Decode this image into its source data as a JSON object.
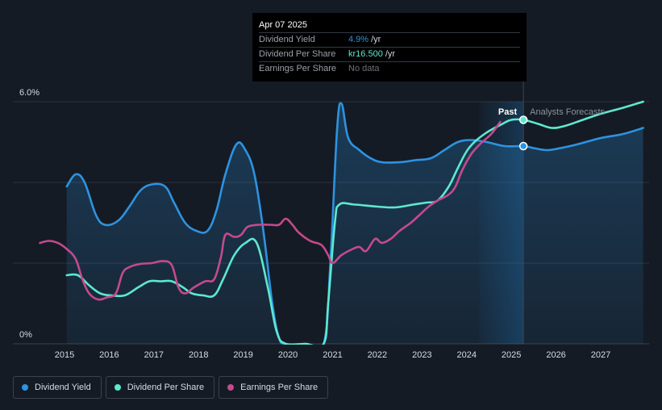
{
  "chart_data": {
    "type": "line",
    "y_axis": {
      "ticks": [
        {
          "value": 6.0,
          "label": "6.0%"
        },
        {
          "value": 0,
          "label": "0%"
        }
      ],
      "ylim": [
        0,
        6.0
      ],
      "gridlines": [
        2.0,
        4.0,
        6.0
      ]
    },
    "x_axis": {
      "ticks": [
        "2015",
        "2016",
        "2017",
        "2018",
        "2019",
        "2020",
        "2021",
        "2022",
        "2023",
        "2024",
        "2025",
        "2026",
        "2027"
      ],
      "xlim": [
        2014.45,
        2027.95
      ]
    },
    "regions": {
      "past_label": "Past",
      "forecast_label": "Analysts Forecasts",
      "past_band": [
        2024.28,
        2025.27
      ],
      "divider": 2025.27
    },
    "series": [
      {
        "name": "Dividend Yield",
        "color": "#2d93e0",
        "fill": true,
        "marker_at": [
          2025.27,
          4.9
        ],
        "points": [
          [
            2015.05,
            3.9
          ],
          [
            2015.25,
            4.2
          ],
          [
            2015.45,
            4.0
          ],
          [
            2015.7,
            3.2
          ],
          [
            2015.9,
            2.95
          ],
          [
            2016.2,
            3.05
          ],
          [
            2016.45,
            3.4
          ],
          [
            2016.7,
            3.8
          ],
          [
            2016.95,
            3.95
          ],
          [
            2017.25,
            3.9
          ],
          [
            2017.45,
            3.5
          ],
          [
            2017.7,
            3.0
          ],
          [
            2017.95,
            2.8
          ],
          [
            2018.2,
            2.8
          ],
          [
            2018.4,
            3.3
          ],
          [
            2018.6,
            4.2
          ],
          [
            2018.85,
            4.95
          ],
          [
            2019.05,
            4.8
          ],
          [
            2019.25,
            4.2
          ],
          [
            2019.45,
            2.8
          ],
          [
            2019.65,
            1.0
          ],
          [
            2019.8,
            0.15
          ],
          [
            2019.95,
            0
          ],
          [
            2020.4,
            0
          ],
          [
            2020.8,
            0
          ],
          [
            2020.95,
            2.0
          ],
          [
            2021.1,
            5.3
          ],
          [
            2021.2,
            5.95
          ],
          [
            2021.35,
            5.1
          ],
          [
            2021.6,
            4.8
          ],
          [
            2021.85,
            4.6
          ],
          [
            2022.1,
            4.5
          ],
          [
            2022.5,
            4.5
          ],
          [
            2022.85,
            4.55
          ],
          [
            2023.2,
            4.6
          ],
          [
            2023.5,
            4.8
          ],
          [
            2023.8,
            5.0
          ],
          [
            2024.1,
            5.05
          ],
          [
            2024.45,
            5.0
          ],
          [
            2024.85,
            4.9
          ],
          [
            2025.27,
            4.9
          ],
          [
            2025.5,
            4.85
          ],
          [
            2025.8,
            4.8
          ],
          [
            2026.1,
            4.85
          ],
          [
            2026.5,
            4.95
          ],
          [
            2027.0,
            5.1
          ],
          [
            2027.5,
            5.2
          ],
          [
            2027.95,
            5.35
          ]
        ]
      },
      {
        "name": "Dividend Per Share",
        "color": "#5ee8cf",
        "fill": false,
        "marker_at": [
          2025.27,
          5.55
        ],
        "points": [
          [
            2015.05,
            1.7
          ],
          [
            2015.3,
            1.7
          ],
          [
            2015.55,
            1.45
          ],
          [
            2015.8,
            1.25
          ],
          [
            2016.05,
            1.2
          ],
          [
            2016.35,
            1.2
          ],
          [
            2016.65,
            1.4
          ],
          [
            2016.9,
            1.55
          ],
          [
            2017.15,
            1.55
          ],
          [
            2017.4,
            1.55
          ],
          [
            2017.65,
            1.4
          ],
          [
            2017.85,
            1.25
          ],
          [
            2018.1,
            1.2
          ],
          [
            2018.35,
            1.2
          ],
          [
            2018.55,
            1.6
          ],
          [
            2018.8,
            2.2
          ],
          [
            2019.05,
            2.5
          ],
          [
            2019.3,
            2.5
          ],
          [
            2019.55,
            1.4
          ],
          [
            2019.75,
            0.3
          ],
          [
            2019.95,
            0
          ],
          [
            2020.4,
            0
          ],
          [
            2020.8,
            0
          ],
          [
            2020.9,
            1.0
          ],
          [
            2021.05,
            3.0
          ],
          [
            2021.15,
            3.45
          ],
          [
            2021.5,
            3.45
          ],
          [
            2022.0,
            3.4
          ],
          [
            2022.4,
            3.38
          ],
          [
            2022.8,
            3.45
          ],
          [
            2023.1,
            3.5
          ],
          [
            2023.35,
            3.55
          ],
          [
            2023.6,
            3.9
          ],
          [
            2023.8,
            4.35
          ],
          [
            2024.05,
            4.85
          ],
          [
            2024.4,
            5.2
          ],
          [
            2024.8,
            5.45
          ],
          [
            2025.0,
            5.55
          ],
          [
            2025.27,
            5.55
          ],
          [
            2025.6,
            5.45
          ],
          [
            2025.9,
            5.35
          ],
          [
            2026.2,
            5.4
          ],
          [
            2026.6,
            5.55
          ],
          [
            2027.0,
            5.7
          ],
          [
            2027.5,
            5.85
          ],
          [
            2027.95,
            6.0
          ]
        ]
      },
      {
        "name": "Earnings Per Share",
        "color": "#c44a8d",
        "fill": false,
        "points": [
          [
            2014.45,
            2.5
          ],
          [
            2014.65,
            2.55
          ],
          [
            2014.85,
            2.5
          ],
          [
            2015.05,
            2.35
          ],
          [
            2015.25,
            2.1
          ],
          [
            2015.4,
            1.6
          ],
          [
            2015.55,
            1.25
          ],
          [
            2015.75,
            1.1
          ],
          [
            2015.95,
            1.15
          ],
          [
            2016.15,
            1.25
          ],
          [
            2016.3,
            1.75
          ],
          [
            2016.45,
            1.9
          ],
          [
            2016.7,
            1.98
          ],
          [
            2016.95,
            2.0
          ],
          [
            2017.2,
            2.05
          ],
          [
            2017.4,
            1.95
          ],
          [
            2017.55,
            1.4
          ],
          [
            2017.7,
            1.25
          ],
          [
            2017.9,
            1.4
          ],
          [
            2018.15,
            1.55
          ],
          [
            2018.35,
            1.6
          ],
          [
            2018.5,
            2.15
          ],
          [
            2018.6,
            2.7
          ],
          [
            2018.8,
            2.65
          ],
          [
            2018.95,
            2.7
          ],
          [
            2019.1,
            2.9
          ],
          [
            2019.35,
            2.95
          ],
          [
            2019.6,
            2.95
          ],
          [
            2019.8,
            2.95
          ],
          [
            2019.95,
            3.1
          ],
          [
            2020.1,
            2.95
          ],
          [
            2020.25,
            2.75
          ],
          [
            2020.5,
            2.55
          ],
          [
            2020.75,
            2.45
          ],
          [
            2020.9,
            2.2
          ],
          [
            2021.0,
            2.0
          ],
          [
            2021.2,
            2.2
          ],
          [
            2021.45,
            2.35
          ],
          [
            2021.6,
            2.4
          ],
          [
            2021.75,
            2.3
          ],
          [
            2021.95,
            2.6
          ],
          [
            2022.1,
            2.5
          ],
          [
            2022.3,
            2.6
          ],
          [
            2022.5,
            2.8
          ],
          [
            2022.75,
            3.0
          ],
          [
            2022.95,
            3.2
          ],
          [
            2023.15,
            3.4
          ],
          [
            2023.35,
            3.55
          ],
          [
            2023.6,
            3.7
          ],
          [
            2023.75,
            3.9
          ],
          [
            2023.9,
            4.3
          ],
          [
            2024.1,
            4.7
          ],
          [
            2024.3,
            4.95
          ],
          [
            2024.55,
            5.2
          ],
          [
            2024.75,
            5.5
          ]
        ]
      }
    ]
  },
  "tooltip": {
    "date": "Apr 07 2025",
    "rows": [
      {
        "label": "Dividend Yield",
        "value": "4.9%",
        "unit": "/yr",
        "color": "#2d93e0"
      },
      {
        "label": "Dividend Per Share",
        "value": "kr16.500",
        "unit": "/yr",
        "color": "#5ee8cf"
      },
      {
        "label": "Earnings Per Share",
        "value": "No data",
        "unit": "",
        "color": "#6b7078"
      }
    ]
  },
  "legend": [
    {
      "label": "Dividend Yield",
      "color": "#2d93e0"
    },
    {
      "label": "Dividend Per Share",
      "color": "#5ee8cf"
    },
    {
      "label": "Earnings Per Share",
      "color": "#c44a8d"
    }
  ]
}
